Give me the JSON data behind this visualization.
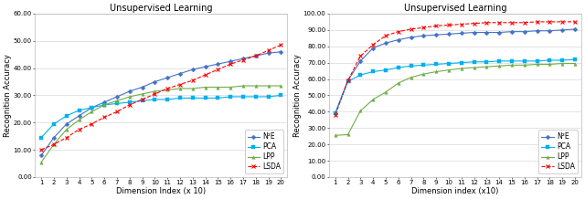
{
  "left": {
    "title": "Unsupervised Learning",
    "xlabel": "Dimension Index (x 10)",
    "ylabel": "Recognition Accuracy",
    "ylim": [
      0,
      60
    ],
    "yticks": [
      0.0,
      10.0,
      20.0,
      30.0,
      40.0,
      50.0,
      60.0
    ],
    "ytick_labels": [
      "0.00",
      "10.00",
      "20.00",
      "30.00",
      "40.00",
      "50.00",
      "60.00"
    ],
    "xlim": [
      0.5,
      20.5
    ],
    "xticks": [
      1,
      2,
      3,
      4,
      5,
      6,
      7,
      8,
      9,
      10,
      11,
      12,
      13,
      14,
      15,
      16,
      17,
      18,
      19,
      20
    ],
    "NPE": [
      8.0,
      14.5,
      19.5,
      22.5,
      25.5,
      27.5,
      29.5,
      31.5,
      33.0,
      35.0,
      36.5,
      38.0,
      39.5,
      40.5,
      41.5,
      42.5,
      43.5,
      44.5,
      45.5,
      46.0
    ],
    "PCA": [
      14.5,
      19.5,
      22.5,
      24.5,
      25.5,
      26.5,
      27.0,
      27.5,
      28.0,
      28.5,
      28.5,
      29.0,
      29.0,
      29.0,
      29.0,
      29.5,
      29.5,
      29.5,
      29.5,
      30.0
    ],
    "LPP": [
      5.5,
      12.0,
      17.5,
      21.0,
      24.0,
      26.5,
      28.0,
      29.5,
      30.5,
      31.5,
      32.0,
      32.5,
      32.5,
      33.0,
      33.0,
      33.0,
      33.5,
      33.5,
      33.5,
      33.5
    ],
    "LSDA": [
      10.0,
      12.0,
      14.5,
      17.5,
      19.5,
      22.0,
      24.0,
      26.5,
      28.5,
      30.5,
      32.5,
      34.0,
      35.5,
      37.5,
      39.5,
      41.5,
      43.0,
      44.5,
      46.5,
      48.5
    ],
    "NPE_color": "#4472C4",
    "PCA_color": "#00B0F0",
    "LPP_color": "#70AD47",
    "LSDA_color": "#FF0000",
    "legend_loc": "lower right"
  },
  "right": {
    "title": "Unsupervised Learning",
    "xlabel": "Dimension index (x10)",
    "ylabel": "Recognition Accuracy",
    "ylim": [
      0,
      100
    ],
    "yticks": [
      0.0,
      10.0,
      20.0,
      30.0,
      40.0,
      50.0,
      60.0,
      70.0,
      80.0,
      90.0,
      100.0
    ],
    "ytick_labels": [
      "0.00",
      "10.00",
      "20.00",
      "30.00",
      "40.00",
      "50.00",
      "60.00",
      "70.00",
      "80.00",
      "90.00",
      "100.00"
    ],
    "xlim": [
      0.5,
      20.5
    ],
    "xticks": [
      1,
      2,
      3,
      4,
      5,
      6,
      7,
      8,
      9,
      10,
      11,
      12,
      13,
      14,
      15,
      16,
      17,
      18,
      19,
      20
    ],
    "NPE": [
      39.0,
      59.0,
      71.0,
      79.0,
      82.0,
      84.0,
      85.5,
      86.5,
      87.0,
      87.5,
      88.0,
      88.5,
      88.5,
      88.5,
      89.0,
      89.0,
      89.5,
      89.5,
      90.0,
      90.5
    ],
    "PCA": [
      39.0,
      58.5,
      62.5,
      64.5,
      65.5,
      67.0,
      68.0,
      68.5,
      69.0,
      69.5,
      70.0,
      70.5,
      70.5,
      71.0,
      71.0,
      71.0,
      71.0,
      71.5,
      71.5,
      72.0
    ],
    "LPP": [
      25.5,
      26.0,
      40.5,
      47.5,
      52.0,
      57.5,
      61.0,
      63.0,
      64.5,
      65.5,
      66.5,
      67.0,
      67.5,
      68.0,
      68.5,
      68.5,
      69.0,
      69.0,
      69.5,
      69.5
    ],
    "LSDA": [
      38.0,
      59.0,
      74.0,
      81.0,
      86.5,
      89.0,
      90.5,
      91.5,
      92.5,
      93.0,
      93.5,
      94.0,
      94.5,
      94.5,
      94.5,
      94.5,
      95.0,
      95.0,
      95.0,
      95.0
    ],
    "NPE_color": "#4472C4",
    "PCA_color": "#00B0F0",
    "LPP_color": "#70AD47",
    "LSDA_color": "#FF0000",
    "legend_loc": "lower right"
  },
  "fig_bg": "#FFFFFF",
  "plot_bg": "#FFFFFF",
  "grid_color": "#D9D9D9",
  "title_fontsize": 7,
  "label_fontsize": 6,
  "tick_fontsize": 5,
  "legend_fontsize": 5.5,
  "marker_size": 2.5,
  "line_width": 0.8
}
